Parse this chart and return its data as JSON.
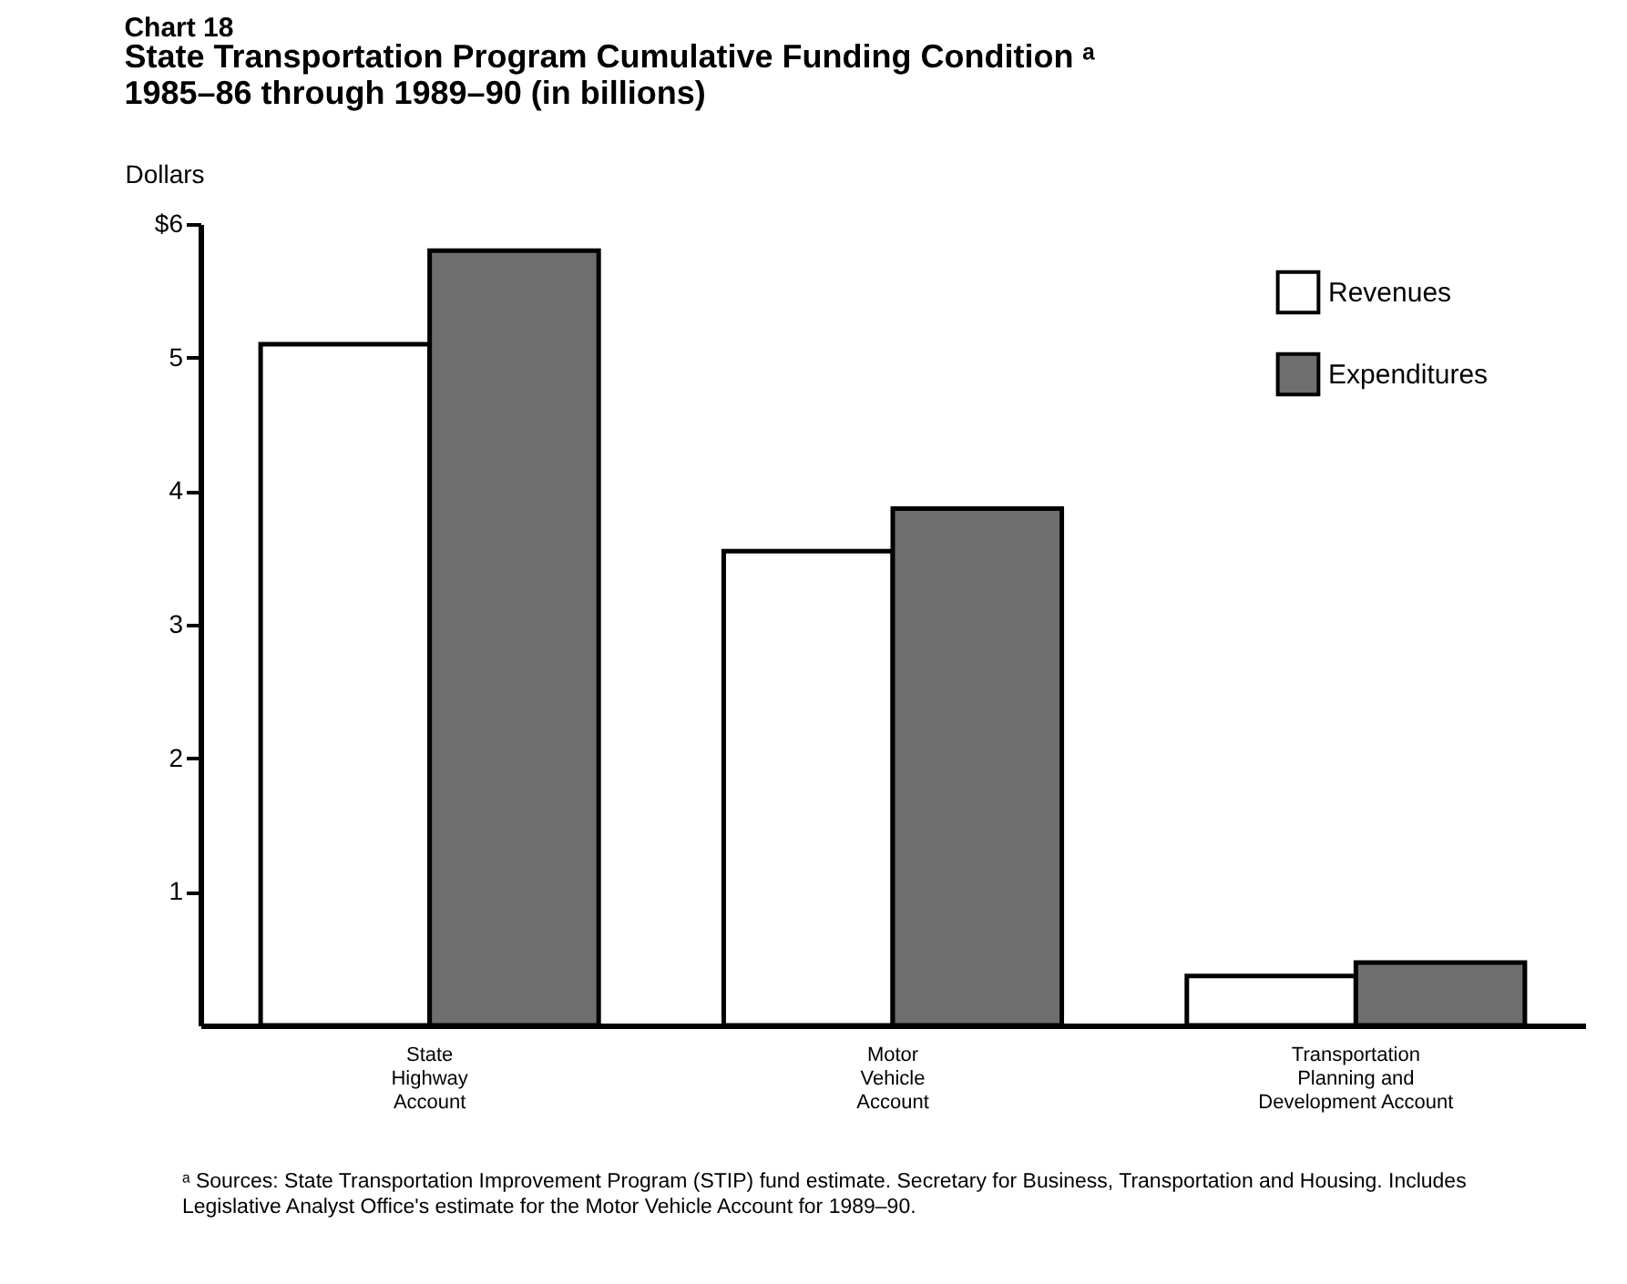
{
  "chart_data": {
    "type": "bar",
    "title": "Chart 18",
    "subtitle": "State Transportation Program Cumulative Funding Condition ᵃ\n1985–86 through 1989–90 (in billions)",
    "ylabel": "Dollars",
    "categories": [
      "State\nHighway\nAccount",
      "Motor\nVehicle\nAccount",
      "Transportation\nPlanning and\nDevelopment Account"
    ],
    "series": [
      {
        "name": "Revenues",
        "color": "#ffffff",
        "values": [
          5.1,
          3.55,
          0.37
        ]
      },
      {
        "name": "Expenditures",
        "color": "#6e6e6e",
        "values": [
          5.8,
          3.87,
          0.47
        ]
      }
    ],
    "ylim": [
      0,
      6
    ],
    "yticks": [
      1,
      2,
      3,
      4,
      5,
      {
        "value": 6,
        "label": "$6"
      }
    ],
    "grid": false,
    "legend": "top right",
    "annotations": [
      "ᵃ Sources: State Transportation Improvement Program (STIP) fund estimate. Secretary for Business, Transportation and Housing. Includes Legislative Analyst Office's estimate for the Motor Vehicle Account for 1989–90."
    ]
  }
}
